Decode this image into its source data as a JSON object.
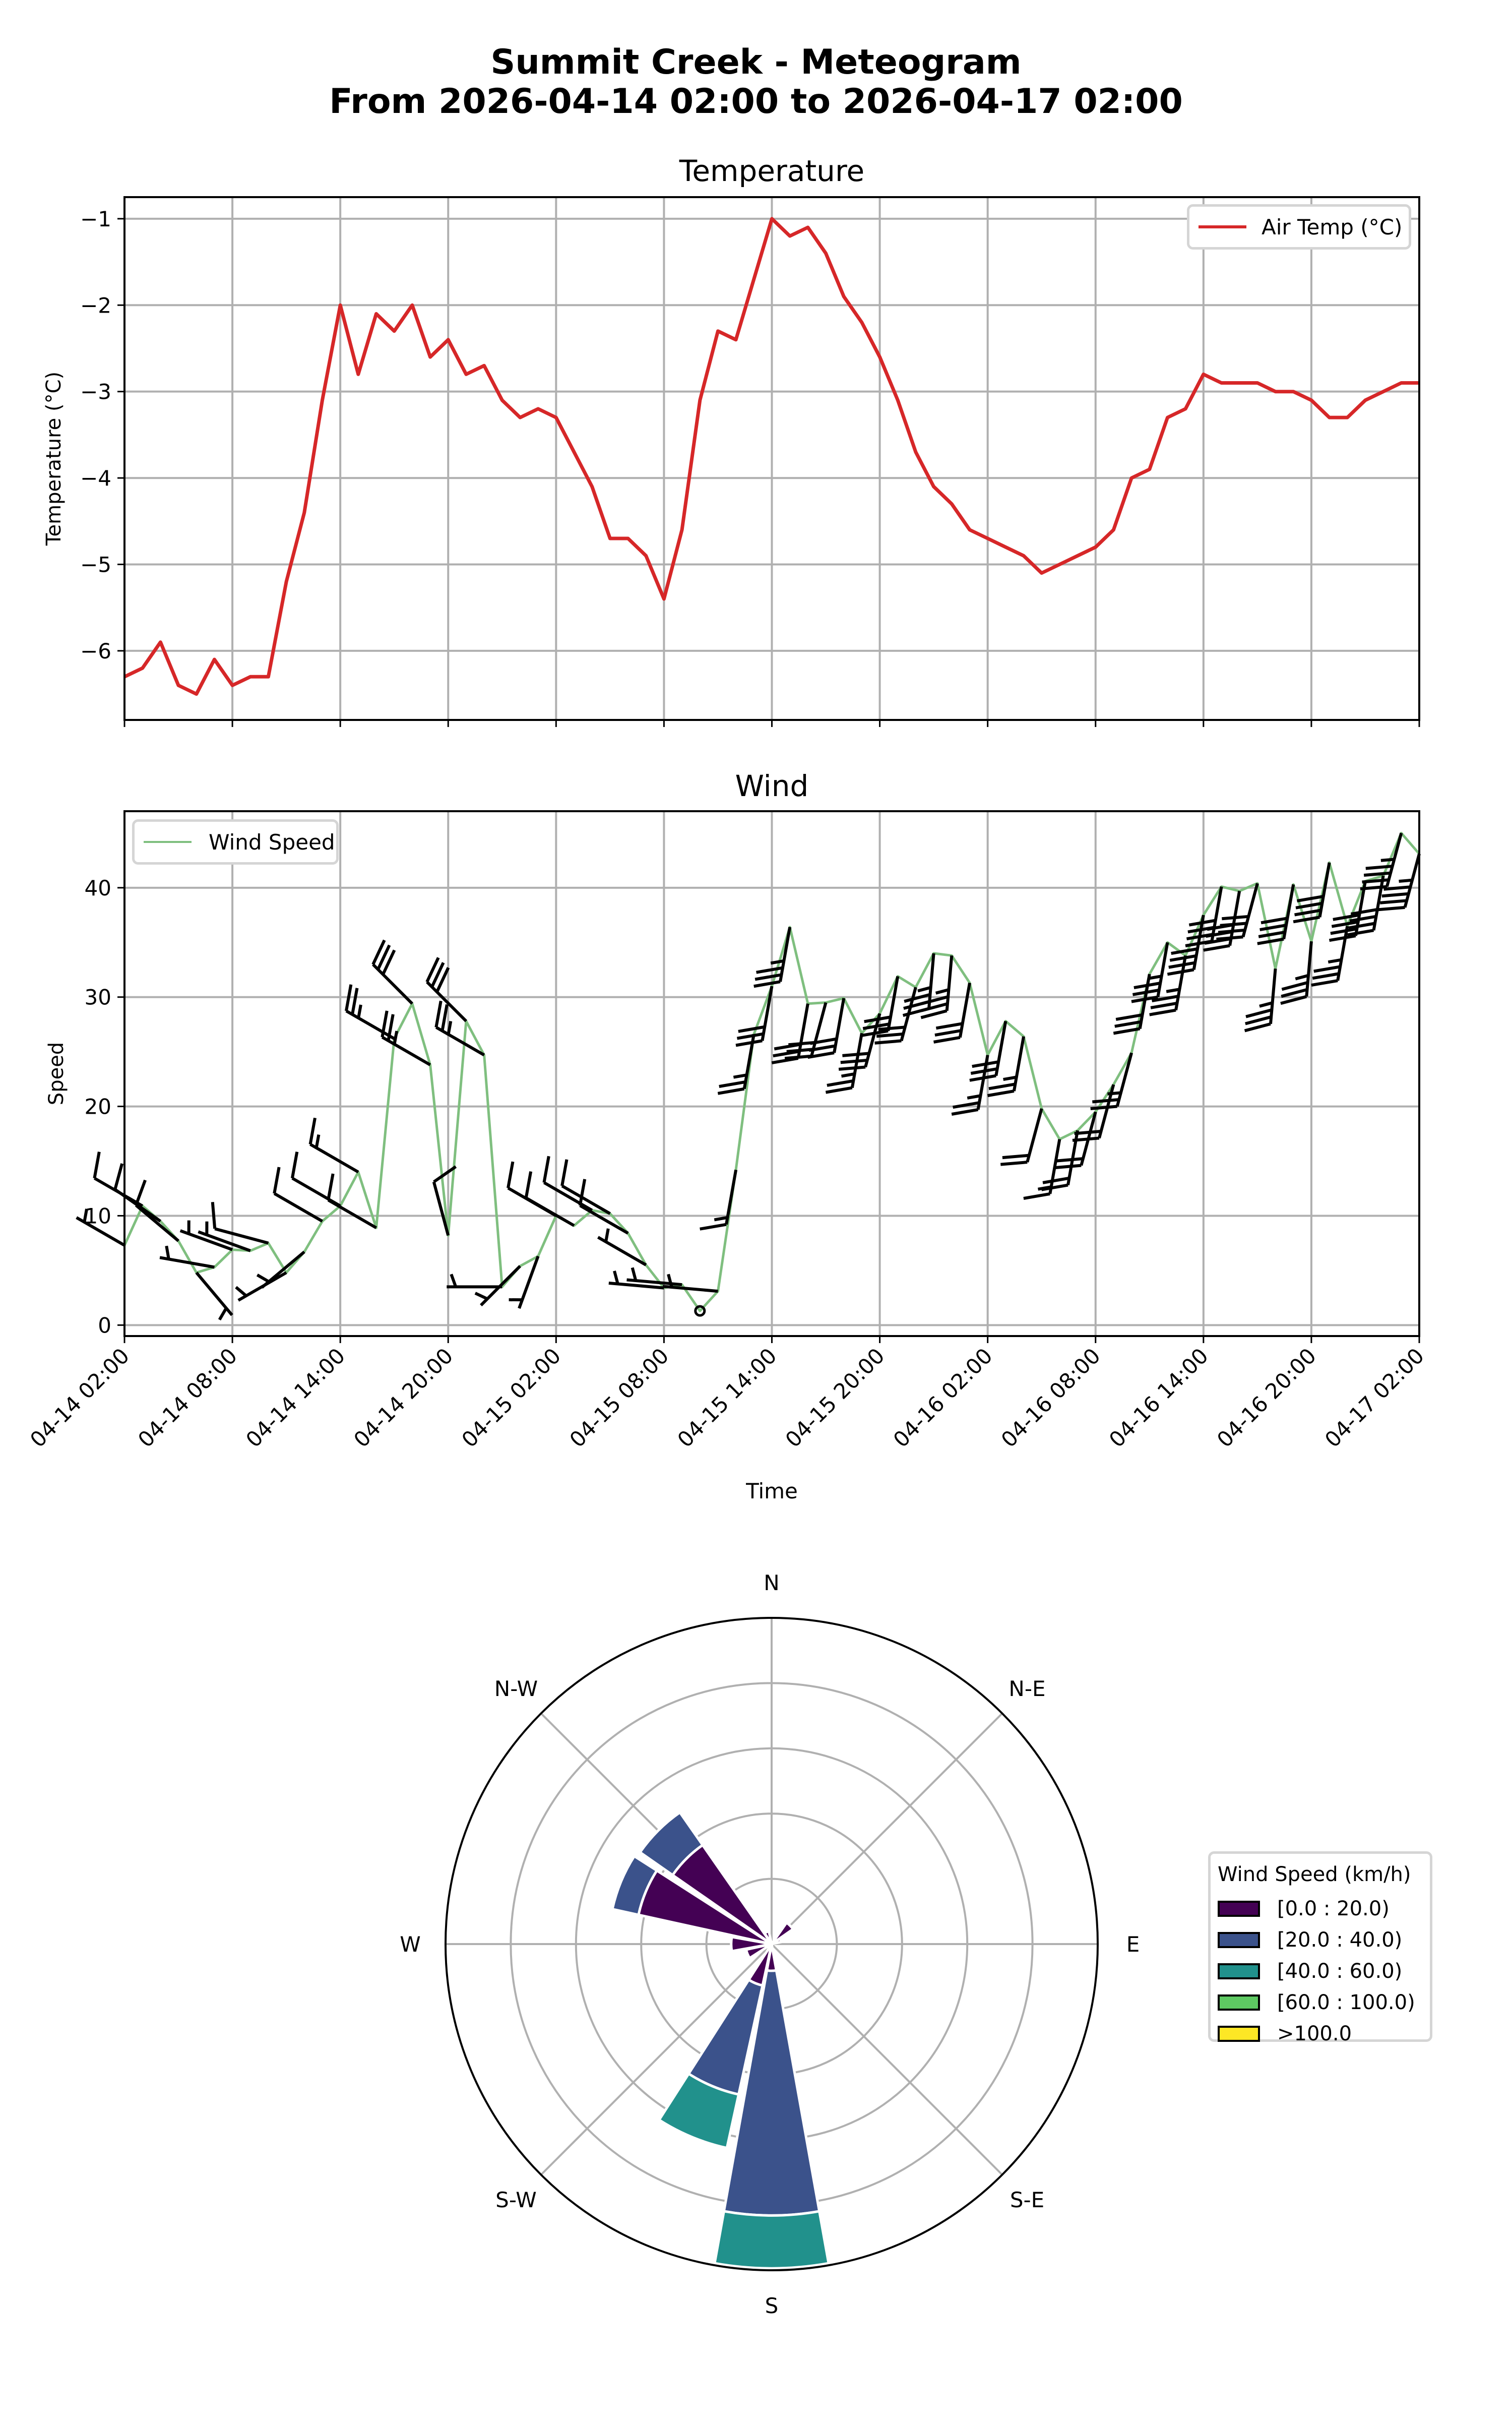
{
  "figure": {
    "title_line1": "Summit Creek - Meteogram",
    "title_line2": "From 2026-04-14 02:00 to 2026-04-17 02:00"
  },
  "chart_data": [
    {
      "type": "line",
      "title": "Temperature",
      "xlabel": "",
      "ylabel": "Temperature (°C)",
      "ylim": [
        -6.8,
        -0.75
      ],
      "yticks": [
        "−1",
        "−2",
        "−3",
        "−4",
        "−5",
        "−6"
      ],
      "ytick_values": [
        -1,
        -2,
        -3,
        -4,
        -5,
        -6
      ],
      "grid": true,
      "legend": {
        "position": "upper right",
        "entries": [
          "Air Temp (°C)"
        ]
      },
      "series": [
        {
          "name": "Air Temp (°C)",
          "color": "#d62728",
          "x_start": "2026-04-14 02:00",
          "x_step_hours": 1,
          "values": [
            -6.3,
            -6.2,
            -5.9,
            -6.4,
            -6.5,
            -6.1,
            -6.4,
            -6.3,
            -6.3,
            -5.2,
            -4.4,
            -3.1,
            -2.0,
            -2.8,
            -2.1,
            -2.3,
            -2.0,
            -2.6,
            -2.4,
            -2.8,
            -2.7,
            -3.1,
            -3.3,
            -3.2,
            -3.3,
            -3.7,
            -4.1,
            -4.7,
            -4.7,
            -4.9,
            -5.4,
            -4.6,
            -3.1,
            -2.3,
            -2.4,
            -1.7,
            -1.0,
            -1.2,
            -1.1,
            -1.4,
            -1.9,
            -2.2,
            -2.6,
            -3.1,
            -3.7,
            -4.1,
            -4.3,
            -4.6,
            -4.7,
            -4.8,
            -4.9,
            -5.1,
            -5.0,
            -4.9,
            -4.8,
            -4.6,
            -4.0,
            -3.9,
            -3.3,
            -3.2,
            -2.8,
            -2.9,
            -2.9,
            -2.9,
            -3.0,
            -3.0,
            -3.1,
            -3.3,
            -3.3,
            -3.1,
            -3.0,
            -2.9,
            -2.9
          ]
        }
      ]
    },
    {
      "type": "line",
      "title": "Wind",
      "xlabel": "Time",
      "ylabel": "Speed",
      "ylim": [
        -1,
        47
      ],
      "yticks": [
        "0",
        "10",
        "20",
        "30",
        "40"
      ],
      "ytick_values": [
        0,
        10,
        20,
        30,
        40
      ],
      "grid": true,
      "legend": {
        "position": "upper left",
        "entries": [
          "Wind Speed"
        ]
      },
      "x_tick_labels": [
        "04-14 02:00",
        "04-14 08:00",
        "04-14 14:00",
        "04-14 20:00",
        "04-15 02:00",
        "04-15 08:00",
        "04-15 14:00",
        "04-15 20:00",
        "04-16 02:00",
        "04-16 08:00",
        "04-16 14:00",
        "04-16 20:00",
        "04-17 02:00"
      ],
      "series": [
        {
          "name": "Wind Speed",
          "color": "#7fbf7f",
          "x_start": "2026-04-14 02:00",
          "x_step_hours": 1,
          "values": [
            7.3,
            10.9,
            9.5,
            7.7,
            4.8,
            5.3,
            6.9,
            6.8,
            7.5,
            4.8,
            6.7,
            9.5,
            10.9,
            14.0,
            8.9,
            26.2,
            29.4,
            23.8,
            8.2,
            27.8,
            24.7,
            3.5,
            5.4,
            6.3,
            10.0,
            9.1,
            10.5,
            10.2,
            8.4,
            5.5,
            3.4,
            3.7,
            1.3,
            3.1,
            14.2,
            26.6,
            31.0,
            36.4,
            29.4,
            29.5,
            29.9,
            26.7,
            28.5,
            31.9,
            30.9,
            34.0,
            33.8,
            31.3,
            24.7,
            27.8,
            26.4,
            19.8,
            17.0,
            17.8,
            19.5,
            22.0,
            24.9,
            32.1,
            35.0,
            33.8,
            37.5,
            40.1,
            39.7,
            40.4,
            32.6,
            40.3,
            35.1,
            42.3,
            36.5,
            40.6,
            41.1,
            45.0,
            43.1
          ]
        }
      ],
      "wind_barbs": {
        "color": "#000000",
        "direction_from_deg": [
          300,
          300,
          305,
          310,
          140,
          280,
          290,
          290,
          285,
          240,
          230,
          300,
          300,
          300,
          300,
          300,
          315,
          300,
          345,
          315,
          300,
          270,
          225,
          200,
          300,
          300,
          300,
          300,
          300,
          300,
          275,
          275,
          0,
          275,
          190,
          190,
          190,
          190,
          190,
          195,
          190,
          190,
          195,
          190,
          195,
          185,
          185,
          190,
          190,
          190,
          190,
          195,
          190,
          190,
          195,
          195,
          195,
          190,
          190,
          190,
          190,
          190,
          190,
          195,
          185,
          190,
          185,
          190,
          190,
          190,
          190,
          195,
          195
        ]
      }
    },
    {
      "type": "bar",
      "subtype": "windrose",
      "title": "",
      "direction_labels": [
        "N",
        "N-E",
        "E",
        "S-E",
        "S",
        "S-W",
        "W",
        "N-W"
      ],
      "sectors": [
        "N",
        "NNE",
        "NE",
        "ENE",
        "E",
        "ESE",
        "SE",
        "SSE",
        "S",
        "SSW",
        "SW",
        "WSW",
        "W",
        "WNW",
        "NW",
        "NNW"
      ],
      "radial_units": "ring (5 rings to outer edge, labels hidden)",
      "rlim": [
        0,
        5
      ],
      "legend": {
        "title": "Wind Speed (km/h)",
        "position": "right",
        "entries": [
          "[0.0 : 20.0)",
          "[20.0 : 40.0)",
          "[40.0 : 60.0)",
          "[60.0 : 100.0)",
          ">100.0"
        ],
        "colors": [
          "#440154",
          "#3b528b",
          "#21918c",
          "#5ec962",
          "#fde725"
        ]
      },
      "series": [
        {
          "name": "[0.0 : 20.0)",
          "values": [
            0,
            0,
            0.4,
            0.15,
            0,
            0,
            0,
            0,
            0.41,
            0.65,
            0,
            0.4,
            0.62,
            2.09,
            1.85,
            0.2
          ]
        },
        {
          "name": "[20.0 : 40.0)",
          "values": [
            0,
            0,
            0,
            0,
            0,
            0,
            0,
            0,
            3.75,
            1.71,
            0,
            0,
            0,
            0.41,
            0.61,
            0
          ]
        },
        {
          "name": "[40.0 : 60.0)",
          "values": [
            0,
            0,
            0,
            0,
            0,
            0,
            0,
            0,
            0.81,
            0.84,
            0,
            0,
            0,
            0,
            0,
            0
          ]
        },
        {
          "name": "[60.0 : 100.0)",
          "values": [
            0,
            0,
            0,
            0,
            0,
            0,
            0,
            0,
            0,
            0,
            0,
            0,
            0,
            0,
            0,
            0
          ]
        },
        {
          "name": ">100.0",
          "values": [
            0,
            0,
            0,
            0,
            0,
            0,
            0,
            0,
            0,
            0,
            0,
            0,
            0,
            0,
            0,
            0
          ]
        }
      ]
    }
  ]
}
